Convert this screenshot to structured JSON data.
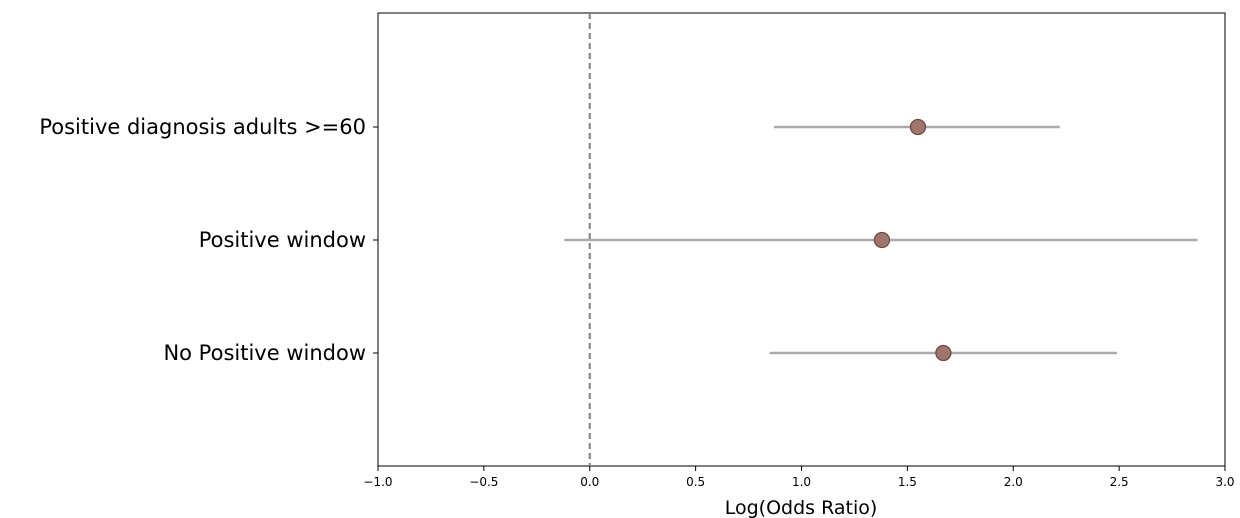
{
  "chart_data": {
    "type": "scatter",
    "title": "",
    "xlabel": "Log(Odds Ratio)",
    "ylabel": "",
    "xlim": [
      -1.0,
      3.0
    ],
    "xticks": [
      -1.0,
      -0.5,
      0.0,
      0.5,
      1.0,
      1.5,
      2.0,
      2.5,
      3.0
    ],
    "xtick_labels": [
      "−1.0",
      "−0.5",
      "0.0",
      "0.5",
      "1.0",
      "1.5",
      "2.0",
      "2.5",
      "3.0"
    ],
    "reference_line": {
      "x": 0.0,
      "style": "dashed"
    },
    "grid": false,
    "categories": [
      "Positive diagnosis adults >=60",
      "Positive window",
      "No Positive window"
    ],
    "points": [
      {
        "label": "Positive diagnosis adults >=60",
        "estimate": 1.55,
        "ci_low": 0.87,
        "ci_high": 2.22
      },
      {
        "label": "Positive window",
        "estimate": 1.38,
        "ci_low": -0.12,
        "ci_high": 2.87
      },
      {
        "label": "No Positive window",
        "estimate": 1.67,
        "ci_low": 0.85,
        "ci_high": 2.49
      }
    ],
    "colors": {
      "marker_fill": "#a2756c",
      "marker_edge": "#6b4a44",
      "errorbar": "#aaaaaa",
      "reference": "#808080"
    }
  }
}
